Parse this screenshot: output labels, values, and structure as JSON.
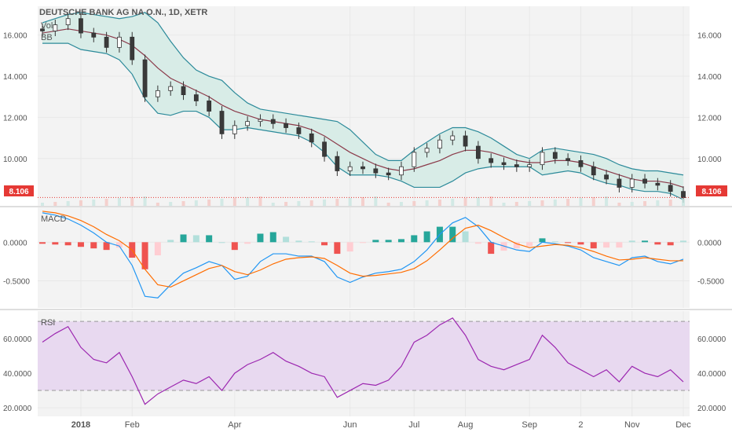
{
  "header": {
    "symbol_title": "DEUTSCHE BANK AG NA O.N., 1D, XETR",
    "indicator_vol": "Vol",
    "indicator_bb": "BB"
  },
  "last_price_label": "8.106",
  "colors": {
    "up": "#26a69a",
    "down": "#ef5350",
    "candle_up_body": "#ffffff",
    "candle_down_body": "#3a3a3a",
    "bb_basis": "#8b3a4a",
    "bb_band": "#2c8a9a",
    "bb_fill": "#d8ece7",
    "macd_line": "#2196f3",
    "signal_line": "#ff6d00",
    "rsi_line": "#9c27b0",
    "rsi_band_fill": "#e8d9f0",
    "price_line": "#e53935",
    "grid": "#e8e8e8",
    "background": "#f3f3f3"
  },
  "chart_data": [
    {
      "type": "line",
      "name": "price",
      "title": "DEUTSCHE BANK AG NA O.N., 1D, XETR",
      "ylim": [
        7.7,
        17.4
      ],
      "yticks": [
        "16.000",
        "14.000",
        "12.000",
        "10.000"
      ],
      "xticks": [
        "2018",
        "Feb",
        "Apr",
        "Jun",
        "Jul",
        "Aug",
        "Sep",
        "2",
        "Nov",
        "Dec"
      ],
      "x": [
        "2017-12-15",
        "2017-12-22",
        "2017-12-29",
        "2018-01-05",
        "2018-01-12",
        "2018-01-19",
        "2018-01-26",
        "2018-02-02",
        "2018-02-09",
        "2018-02-16",
        "2018-02-23",
        "2018-03-02",
        "2018-03-09",
        "2018-03-16",
        "2018-03-23",
        "2018-03-30",
        "2018-04-06",
        "2018-04-13",
        "2018-04-20",
        "2018-04-27",
        "2018-05-04",
        "2018-05-11",
        "2018-05-18",
        "2018-05-25",
        "2018-06-01",
        "2018-06-08",
        "2018-06-15",
        "2018-06-22",
        "2018-06-29",
        "2018-07-06",
        "2018-07-13",
        "2018-07-20",
        "2018-07-27",
        "2018-08-03",
        "2018-08-10",
        "2018-08-17",
        "2018-08-24",
        "2018-08-31",
        "2018-09-07",
        "2018-09-14",
        "2018-09-21",
        "2018-09-28",
        "2018-10-05",
        "2018-10-12",
        "2018-10-19",
        "2018-10-26",
        "2018-11-02",
        "2018-11-09",
        "2018-11-16",
        "2018-11-23",
        "2018-11-30"
      ],
      "series": [
        {
          "name": "Close",
          "values": [
            16.2,
            16.5,
            16.8,
            16.1,
            15.9,
            15.4,
            15.9,
            14.8,
            13.0,
            13.3,
            13.5,
            13.1,
            12.8,
            12.3,
            11.2,
            11.6,
            11.8,
            11.9,
            11.7,
            11.5,
            11.2,
            10.8,
            10.1,
            9.4,
            9.6,
            9.5,
            9.3,
            9.2,
            9.6,
            10.3,
            10.5,
            10.9,
            11.1,
            10.6,
            10.0,
            9.8,
            9.7,
            9.6,
            9.7,
            10.3,
            10.0,
            9.9,
            9.6,
            9.2,
            9.0,
            8.6,
            9.0,
            8.8,
            8.7,
            8.4,
            8.1
          ]
        },
        {
          "name": "BB Basis",
          "values": [
            16.1,
            16.2,
            16.3,
            16.2,
            16.1,
            16.0,
            15.8,
            15.5,
            15.0,
            14.4,
            13.9,
            13.6,
            13.3,
            13.0,
            12.6,
            12.3,
            12.1,
            11.9,
            11.8,
            11.7,
            11.6,
            11.4,
            11.1,
            10.7,
            10.3,
            10.0,
            9.7,
            9.5,
            9.4,
            9.5,
            9.7,
            9.9,
            10.2,
            10.4,
            10.4,
            10.3,
            10.1,
            9.9,
            9.8,
            9.8,
            9.9,
            9.9,
            9.8,
            9.6,
            9.4,
            9.2,
            9.0,
            8.9,
            8.9,
            8.8,
            8.6
          ]
        },
        {
          "name": "BB Upper",
          "values": [
            16.6,
            16.8,
            17.0,
            17.1,
            17.0,
            16.9,
            16.8,
            16.9,
            17.1,
            16.6,
            15.7,
            14.9,
            14.3,
            14.0,
            13.8,
            13.2,
            12.7,
            12.4,
            12.3,
            12.2,
            12.1,
            12.0,
            11.9,
            11.8,
            11.4,
            10.8,
            10.2,
            9.9,
            9.9,
            10.4,
            10.8,
            11.2,
            11.5,
            11.5,
            11.3,
            11.0,
            10.6,
            10.2,
            10.0,
            10.4,
            10.5,
            10.4,
            10.3,
            10.2,
            10.0,
            9.7,
            9.5,
            9.4,
            9.4,
            9.3,
            9.2
          ]
        },
        {
          "name": "BB Lower",
          "values": [
            15.6,
            15.6,
            15.6,
            15.3,
            15.2,
            15.1,
            14.8,
            14.1,
            12.9,
            12.2,
            12.1,
            12.3,
            12.3,
            12.0,
            11.4,
            11.4,
            11.5,
            11.4,
            11.3,
            11.2,
            11.1,
            10.8,
            10.3,
            9.6,
            9.2,
            9.2,
            9.2,
            9.1,
            8.9,
            8.6,
            8.6,
            8.6,
            8.9,
            9.3,
            9.5,
            9.6,
            9.6,
            9.6,
            9.6,
            9.2,
            9.3,
            9.4,
            9.3,
            9.0,
            8.8,
            8.7,
            8.5,
            8.4,
            8.4,
            8.3,
            8.0
          ]
        }
      ]
    },
    {
      "type": "line",
      "name": "MACD",
      "ylim": [
        -0.85,
        0.45
      ],
      "yticks": [
        "0.0000",
        "-0.5000"
      ],
      "series": [
        {
          "name": "MACD",
          "values": [
            0.38,
            0.35,
            0.3,
            0.22,
            0.12,
            0.0,
            -0.05,
            -0.3,
            -0.7,
            -0.72,
            -0.55,
            -0.4,
            -0.33,
            -0.25,
            -0.3,
            -0.48,
            -0.44,
            -0.25,
            -0.15,
            -0.15,
            -0.18,
            -0.18,
            -0.25,
            -0.45,
            -0.52,
            -0.45,
            -0.4,
            -0.38,
            -0.35,
            -0.25,
            -0.1,
            0.1,
            0.25,
            0.32,
            0.2,
            0.0,
            -0.05,
            -0.1,
            -0.12,
            0.0,
            -0.02,
            -0.05,
            -0.1,
            -0.2,
            -0.25,
            -0.3,
            -0.2,
            -0.18,
            -0.25,
            -0.28,
            -0.22
          ]
        },
        {
          "name": "Signal",
          "values": [
            0.4,
            0.38,
            0.34,
            0.28,
            0.2,
            0.1,
            0.02,
            -0.1,
            -0.35,
            -0.55,
            -0.58,
            -0.5,
            -0.42,
            -0.34,
            -0.3,
            -0.38,
            -0.42,
            -0.36,
            -0.28,
            -0.22,
            -0.2,
            -0.19,
            -0.21,
            -0.3,
            -0.4,
            -0.44,
            -0.43,
            -0.41,
            -0.39,
            -0.34,
            -0.24,
            -0.1,
            0.05,
            0.18,
            0.22,
            0.15,
            0.06,
            -0.02,
            -0.07,
            -0.05,
            -0.03,
            -0.04,
            -0.07,
            -0.12,
            -0.18,
            -0.23,
            -0.22,
            -0.2,
            -0.22,
            -0.24,
            -0.24
          ]
        }
      ]
    },
    {
      "type": "line",
      "name": "RSI",
      "ylim": [
        15,
        76
      ],
      "yticks": [
        "60.0000",
        "40.0000",
        "20.0000"
      ],
      "band": [
        30,
        70
      ],
      "series": [
        {
          "name": "RSI",
          "values": [
            58,
            63,
            67,
            55,
            48,
            46,
            52,
            38,
            22,
            28,
            32,
            36,
            34,
            38,
            30,
            40,
            45,
            48,
            52,
            47,
            44,
            40,
            38,
            26,
            30,
            34,
            33,
            36,
            44,
            58,
            62,
            68,
            72,
            62,
            48,
            44,
            42,
            45,
            48,
            62,
            55,
            46,
            42,
            38,
            42,
            35,
            44,
            40,
            38,
            42,
            35
          ]
        }
      ]
    }
  ]
}
